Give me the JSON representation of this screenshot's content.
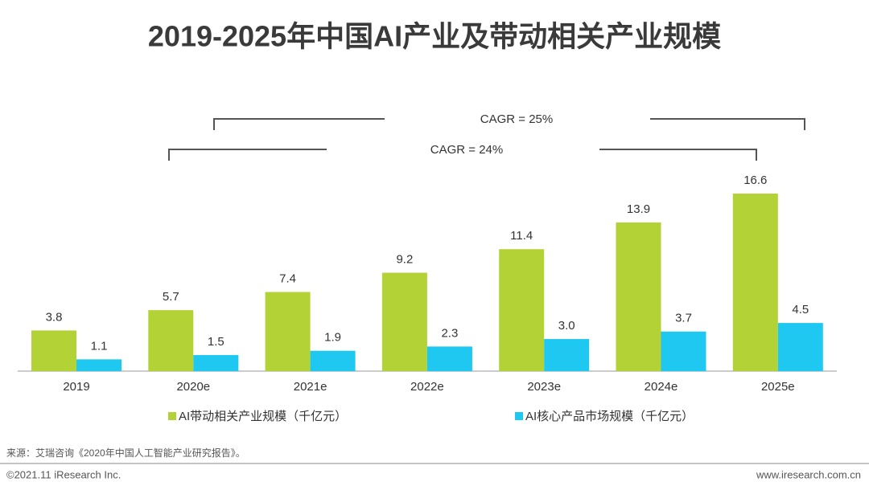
{
  "chart_data": {
    "type": "bar",
    "title": "2019-2025年中国AI产业及带动相关产业规模",
    "categories": [
      "2019",
      "2020e",
      "2021e",
      "2022e",
      "2023e",
      "2024e",
      "2025e"
    ],
    "series": [
      {
        "name": "AI带动相关产业规模（千亿元）",
        "color": "#b2d235",
        "values": [
          3.8,
          5.7,
          7.4,
          9.2,
          11.4,
          13.9,
          16.6
        ],
        "value_labels": [
          "3.8",
          "5.7",
          "7.4",
          "9.2",
          "11.4",
          "13.9",
          "16.6"
        ]
      },
      {
        "name": "AI核心产品市场规模（千亿元）",
        "color": "#1ec8f0",
        "values": [
          1.1,
          1.5,
          1.9,
          2.3,
          3.0,
          3.7,
          4.5
        ],
        "value_labels": [
          "1.1",
          "1.5",
          "1.9",
          "2.3",
          "3.0",
          "3.7",
          "4.5"
        ]
      }
    ],
    "annotations": [
      "CAGR = 25%",
      "CAGR = 24%"
    ]
  },
  "source": "来源：艾瑞咨询《2020年中国人工智能产业研究报告》。",
  "copyright": "©2021.11 iResearch Inc.",
  "website": "www.iresearch.com.cn"
}
